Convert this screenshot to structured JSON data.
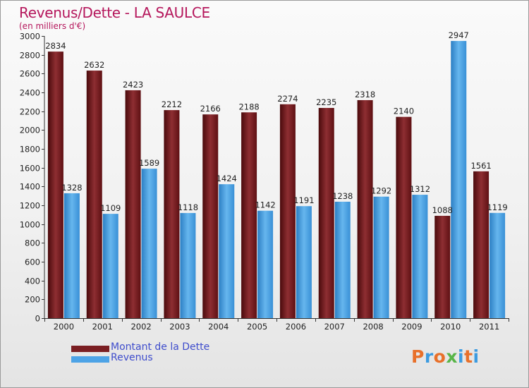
{
  "chart_data": {
    "type": "bar",
    "title": "Revenus/Dette - LA SAULCE",
    "subtitle": "(en milliers d'€)",
    "categories": [
      "2000",
      "2001",
      "2002",
      "2003",
      "2004",
      "2005",
      "2006",
      "2007",
      "2008",
      "2009",
      "2010",
      "2011"
    ],
    "series": [
      {
        "name": "Montant de la Dette",
        "color": "#7a1e22",
        "values": [
          2834,
          2632,
          2423,
          2212,
          2166,
          2188,
          2274,
          2235,
          2318,
          2140,
          1088,
          1561
        ]
      },
      {
        "name": "Revenus",
        "color": "#4da3e6",
        "values": [
          1328,
          1109,
          1589,
          1118,
          1424,
          1142,
          1191,
          1238,
          1292,
          1312,
          2947,
          1119
        ]
      }
    ],
    "ylim": [
      0,
      3000
    ],
    "yticks": [
      0,
      200,
      400,
      600,
      800,
      1000,
      1200,
      1400,
      1600,
      1800,
      2000,
      2200,
      2400,
      2600,
      2800,
      3000
    ],
    "grid": false,
    "legend_position": "bottom-left"
  },
  "legend": {
    "items": [
      {
        "label": "Montant de la Dette",
        "color": "#7a1e22"
      },
      {
        "label": "Revenus",
        "color": "#4da3e6"
      }
    ]
  },
  "logo": {
    "letters": [
      "P",
      "r",
      "o",
      "x",
      "i",
      "t",
      "i"
    ],
    "colors": [
      "#e8702a",
      "#3c9be0",
      "#e8702a",
      "#58b548",
      "#3c9be0",
      "#e8702a",
      "#3c9be0"
    ]
  }
}
